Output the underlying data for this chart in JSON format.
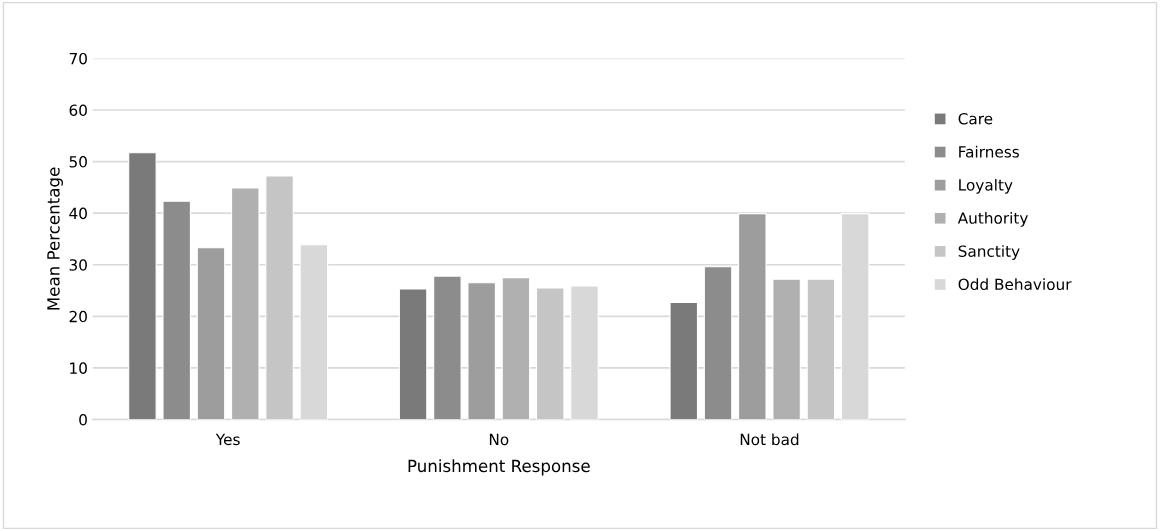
{
  "chart_data": {
    "type": "bar",
    "xlabel": "Punishment Response",
    "ylabel": "Mean Percentage",
    "categories": [
      "Yes",
      "No",
      "Not bad"
    ],
    "series": [
      {
        "name": "Care",
        "color": "#7a7a7a",
        "values": [
          51.7,
          25.3,
          22.7
        ]
      },
      {
        "name": "Fairness",
        "color": "#8c8c8c",
        "values": [
          42.3,
          27.8,
          29.6
        ]
      },
      {
        "name": "Loyalty",
        "color": "#9d9d9d",
        "values": [
          33.3,
          26.5,
          39.9
        ]
      },
      {
        "name": "Authority",
        "color": "#b0b0b0",
        "values": [
          44.9,
          27.5,
          27.2
        ]
      },
      {
        "name": "Sanctity",
        "color": "#c5c5c5",
        "values": [
          47.2,
          25.5,
          27.2
        ]
      },
      {
        "name": "Odd Behaviour",
        "color": "#d8d8d8",
        "values": [
          33.9,
          25.9,
          39.9
        ]
      }
    ],
    "ylim": [
      0,
      70
    ],
    "yticks": [
      0,
      10,
      20,
      30,
      40,
      50,
      60,
      70
    ],
    "grid": "y",
    "legend": "right"
  }
}
